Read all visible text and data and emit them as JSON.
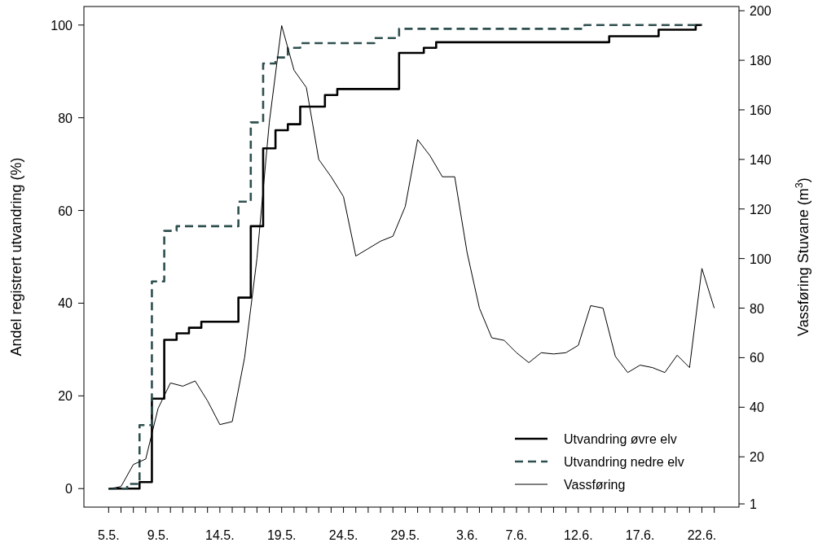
{
  "chart_data": {
    "type": "step",
    "ylabel": "Andel registrert utvandring (%)",
    "y2label": "Vassføring Stuvane (m$^{3}$)",
    "xlim": [
      "--05-03",
      "--06-25"
    ],
    "ylim": [
      -4,
      104
    ],
    "yticks": [
      0,
      20,
      40,
      60,
      80,
      100
    ],
    "y2lim": [
      -0.3,
      201.7
    ],
    "y2ticks": [
      1,
      20,
      40,
      60,
      80,
      100,
      120,
      140,
      160,
      180,
      200
    ],
    "xticks": [
      {
        "value": "--05-05",
        "label": "5.5."
      },
      {
        "value": "--05-06",
        "label": null
      },
      {
        "value": "--05-07",
        "label": null
      },
      {
        "value": "--05-08",
        "label": null
      },
      {
        "value": "--05-09",
        "label": "9.5."
      },
      {
        "value": "--05-10",
        "label": null
      },
      {
        "value": "--05-11",
        "label": null
      },
      {
        "value": "--05-12",
        "label": null
      },
      {
        "value": "--05-13",
        "label": null
      },
      {
        "value": "--05-14",
        "label": "14.5."
      },
      {
        "value": "--05-15",
        "label": null
      },
      {
        "value": "--05-16",
        "label": null
      },
      {
        "value": "--05-17",
        "label": null
      },
      {
        "value": "--05-18",
        "label": null
      },
      {
        "value": "--05-19",
        "label": "19.5."
      },
      {
        "value": "--05-20",
        "label": null
      },
      {
        "value": "--05-21",
        "label": null
      },
      {
        "value": "--05-22",
        "label": null
      },
      {
        "value": "--05-23",
        "label": null
      },
      {
        "value": "--05-24",
        "label": "24.5."
      },
      {
        "value": "--05-25",
        "label": null
      },
      {
        "value": "--05-26",
        "label": null
      },
      {
        "value": "--05-27",
        "label": null
      },
      {
        "value": "--05-28",
        "label": null
      },
      {
        "value": "--05-29",
        "label": "29.5."
      },
      {
        "value": "--05-30",
        "label": null
      },
      {
        "value": "--05-31",
        "label": null
      },
      {
        "value": "--06-01",
        "label": null
      },
      {
        "value": "--06-02",
        "label": null
      },
      {
        "value": "--06-03",
        "label": "3.6."
      },
      {
        "value": "--06-04",
        "label": null
      },
      {
        "value": "--06-05",
        "label": null
      },
      {
        "value": "--06-06",
        "label": null
      },
      {
        "value": "--06-07",
        "label": "7.6."
      },
      {
        "value": "--06-08",
        "label": null
      },
      {
        "value": "--06-09",
        "label": null
      },
      {
        "value": "--06-10",
        "label": null
      },
      {
        "value": "--06-11",
        "label": null
      },
      {
        "value": "--06-12",
        "label": "12.6."
      },
      {
        "value": "--06-13",
        "label": null
      },
      {
        "value": "--06-14",
        "label": null
      },
      {
        "value": "--06-15",
        "label": null
      },
      {
        "value": "--06-16",
        "label": null
      },
      {
        "value": "--06-17",
        "label": "17.6."
      },
      {
        "value": "--06-18",
        "label": null
      },
      {
        "value": "--06-19",
        "label": null
      },
      {
        "value": "--06-20",
        "label": null
      },
      {
        "value": "--06-21",
        "label": null
      },
      {
        "value": "--06-22",
        "label": "22.6."
      },
      {
        "value": "--06-23",
        "label": null
      }
    ],
    "x": [
      "--05-05",
      "--05-06",
      "--05-07",
      "--05-08",
      "--05-09",
      "--05-10",
      "--05-11",
      "--05-12",
      "--05-13",
      "--05-14",
      "--05-15",
      "--05-16",
      "--05-17",
      "--05-18",
      "--05-19",
      "--05-20",
      "--05-21",
      "--05-22",
      "--05-23",
      "--05-24",
      "--05-25",
      "--05-26",
      "--05-27",
      "--05-28",
      "--05-29",
      "--05-30",
      "--05-31",
      "--06-01",
      "--06-02",
      "--06-03",
      "--06-04",
      "--06-05",
      "--06-06",
      "--06-07",
      "--06-08",
      "--06-09",
      "--06-10",
      "--06-11",
      "--06-12",
      "--06-13",
      "--06-14",
      "--06-15",
      "--06-16",
      "--06-17",
      "--06-18",
      "--06-19",
      "--06-20",
      "--06-21",
      "--06-22"
    ],
    "series": [
      {
        "name": "Utvandring øvre elv",
        "color": "#000000",
        "line_style": "solid",
        "values": [
          0,
          0,
          0,
          1.4,
          19.4,
          32.1,
          33.5,
          34.7,
          36,
          36,
          36,
          41.2,
          56.6,
          73.4,
          77.3,
          78.6,
          82.4,
          82.4,
          84.9,
          86.2,
          86.2,
          86.2,
          86.2,
          86.2,
          94,
          94,
          95.1,
          96.3,
          96.3,
          96.3,
          96.3,
          96.3,
          96.3,
          96.3,
          96.3,
          96.3,
          96.3,
          96.3,
          96.3,
          96.3,
          96.3,
          97.6,
          97.6,
          97.6,
          97.6,
          99,
          99,
          99,
          100
        ]
      },
      {
        "name": "Utvandring nedre elv",
        "color": "#2f4f4f",
        "line_style": "dashed",
        "values": [
          0,
          0,
          1,
          13.7,
          44.7,
          55.6,
          56.6,
          56.6,
          56.6,
          56.6,
          56.6,
          61.9,
          79,
          91.7,
          93,
          95.1,
          96.1,
          96.1,
          96.1,
          96.1,
          96.1,
          96.1,
          97.2,
          97.2,
          99.2,
          99.2,
          99.2,
          99.2,
          99.2,
          99.2,
          99.2,
          99.2,
          99.2,
          99.2,
          99.2,
          99.2,
          99.2,
          99.2,
          99.2,
          100,
          100,
          100,
          100,
          100,
          100,
          100,
          100,
          100,
          100
        ]
      },
      {
        "name": "Vassføring",
        "type": "line",
        "axis": "y2",
        "color": "#000000",
        "line_style": "solid",
        "x": [
          "--05-05",
          "--05-06",
          "--05-07",
          "--05-08",
          "--05-09",
          "--05-10",
          "--05-11",
          "--05-12",
          "--05-13",
          "--05-14",
          "--05-15",
          "--05-16",
          "--05-17",
          "--05-18",
          "--05-19",
          "--05-20",
          "--05-21",
          "--05-22",
          "--05-23",
          "--05-24",
          "--05-25",
          "--05-26",
          "--05-27",
          "--05-28",
          "--05-29",
          "--05-30",
          "--05-31",
          "--06-01",
          "--06-02",
          "--06-03",
          "--06-04",
          "--06-05",
          "--06-06",
          "--06-07",
          "--06-08",
          "--06-09",
          "--06-10",
          "--06-11",
          "--06-12",
          "--06-13",
          "--06-14",
          "--06-15",
          "--06-16",
          "--06-17",
          "--06-18",
          "--06-19",
          "--06-20",
          "--06-21",
          "--06-22",
          "--06-23"
        ],
        "values": [
          7,
          8,
          16.9,
          19.1,
          39.5,
          49.8,
          48.5,
          50.6,
          42.6,
          33,
          34.2,
          60,
          100,
          155,
          194,
          176,
          169,
          140,
          133,
          125,
          101,
          104,
          107,
          109,
          121,
          148,
          141.5,
          133,
          133,
          102.5,
          80,
          68,
          67,
          62,
          58,
          62,
          61.5,
          62,
          65,
          81,
          80,
          60.5,
          54,
          57,
          56,
          54,
          61,
          56,
          96,
          80
        ]
      }
    ],
    "legend": "bottom right",
    "grid": false
  }
}
